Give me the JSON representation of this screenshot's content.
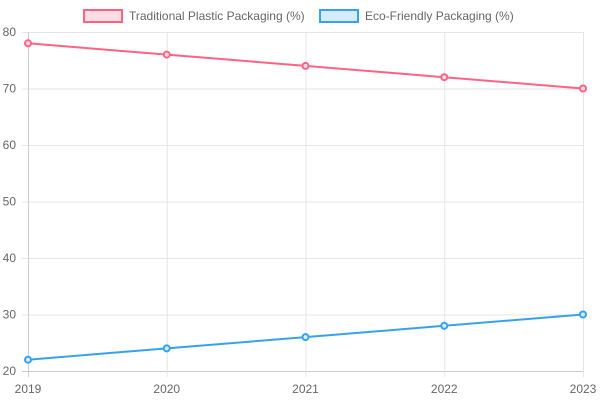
{
  "chart_data": {
    "type": "line",
    "categories": [
      "2019",
      "2020",
      "2021",
      "2022",
      "2023"
    ],
    "series": [
      {
        "name": "Traditional Plastic Packaging (%)",
        "values": [
          78,
          76,
          74,
          72,
          70
        ],
        "color": "#ff6384",
        "fill": "#ffdde4"
      },
      {
        "name": "Eco-Friendly Packaging (%)",
        "values": [
          22,
          24,
          26,
          28,
          30
        ],
        "color": "#36a2eb",
        "fill": "#d7ecfb"
      }
    ],
    "ylim": [
      20,
      80
    ],
    "yticks": [
      "20",
      "30",
      "40",
      "50",
      "60",
      "70",
      "80"
    ],
    "grid": true,
    "legend": "top",
    "title": "",
    "xlabel": "",
    "ylabel": ""
  }
}
